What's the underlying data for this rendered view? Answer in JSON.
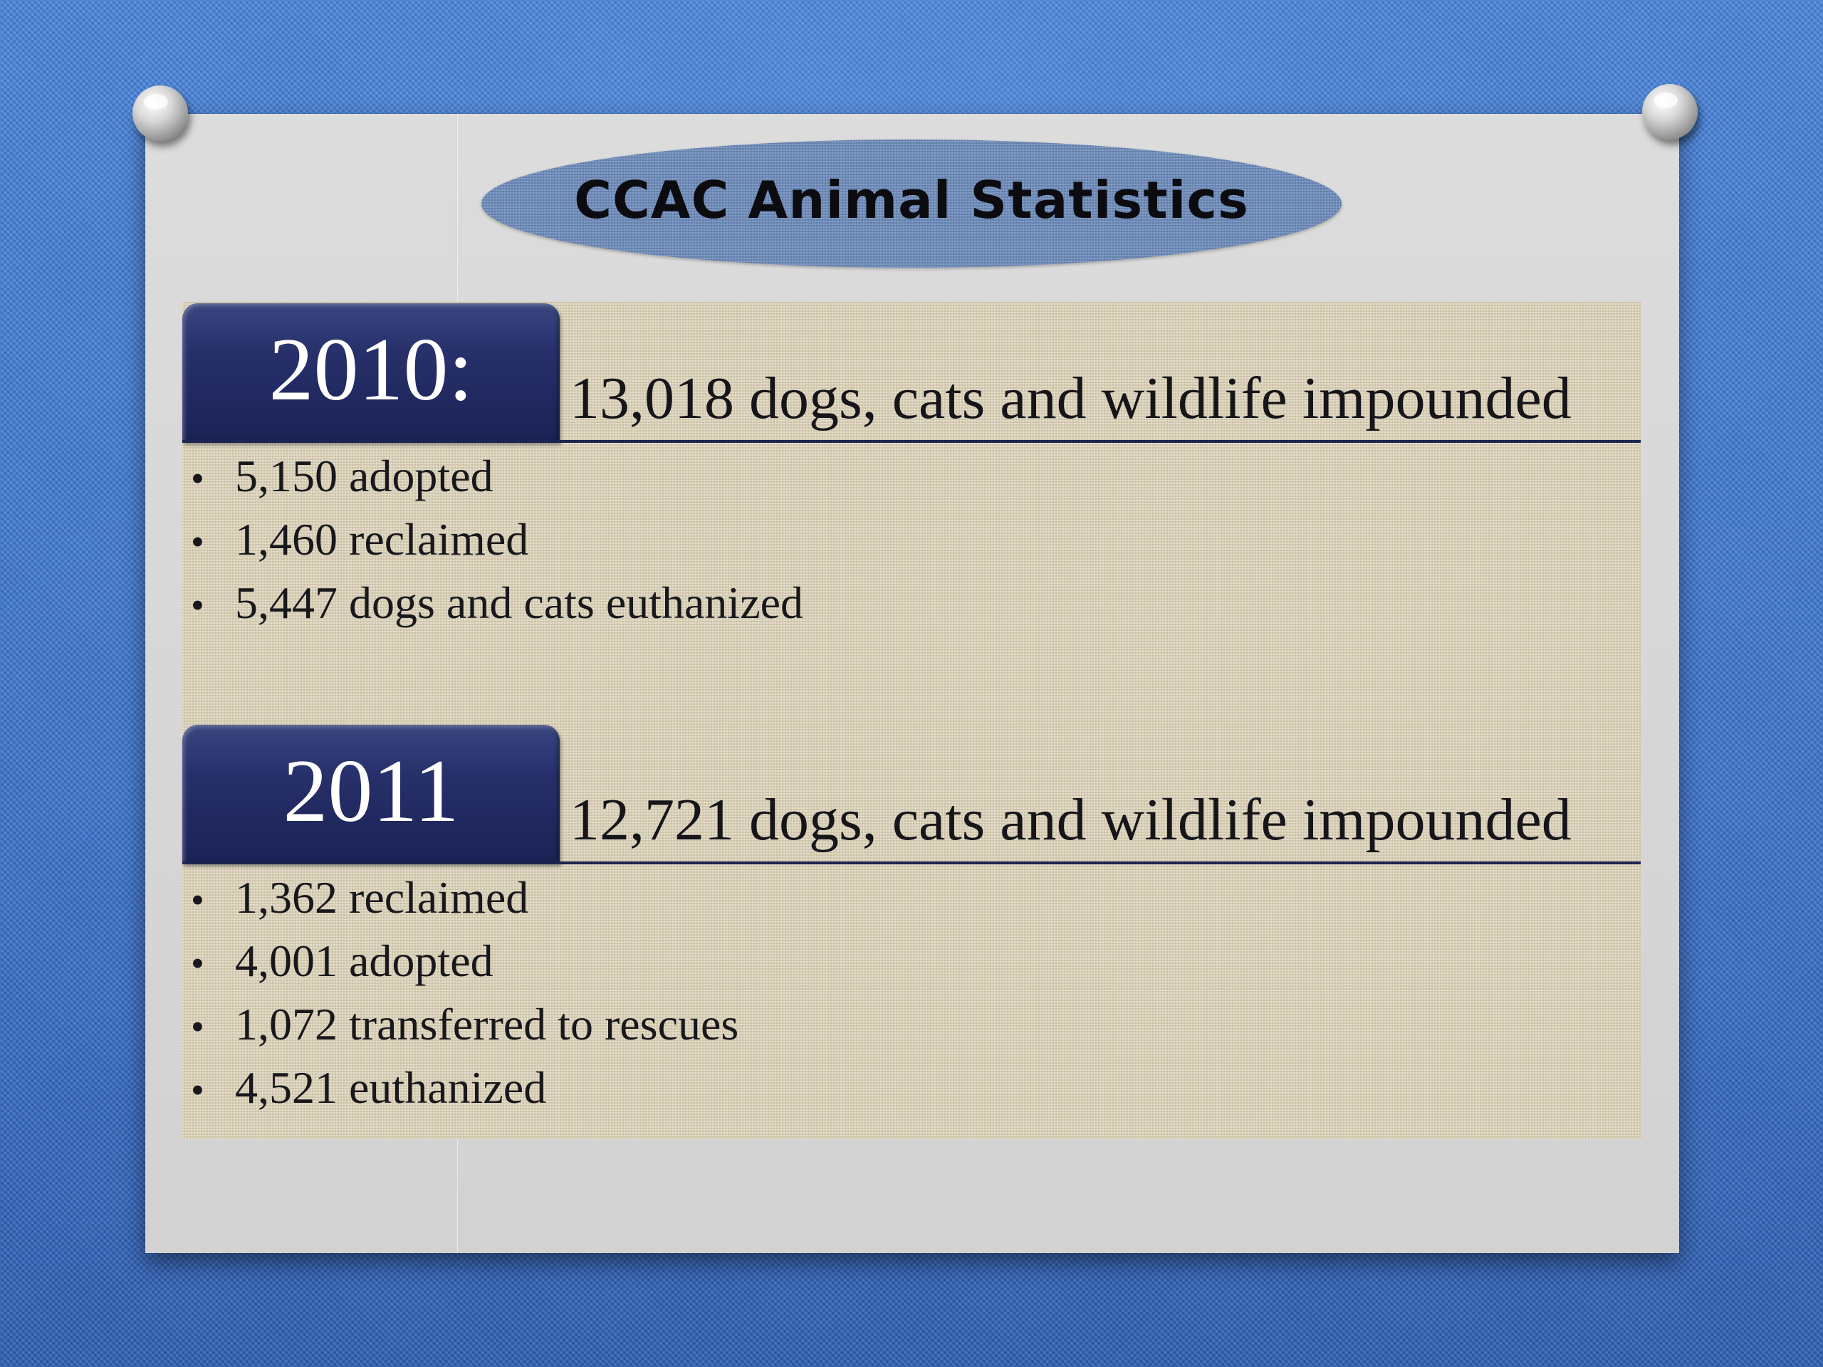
{
  "slide": {
    "title": "CCAC Animal Statistics"
  },
  "sections": [
    {
      "year": "2010:",
      "headline": "13,018 dogs, cats and wildlife impounded",
      "items": [
        "5,150 adopted",
        "1,460 reclaimed",
        "5,447 dogs and cats euthanized"
      ]
    },
    {
      "year": "2011",
      "headline": "12,721 dogs, cats and wildlife impounded",
      "items": [
        "1,362 reclaimed",
        "4,001 adopted",
        "1,072 transferred to rescues",
        "4,521 euthanized"
      ]
    }
  ],
  "bullet_glyph": "•",
  "colors": {
    "background": "#3f78d2",
    "board": "#d6d6d6",
    "canvas": "#ddd5bd",
    "tab": "#27306a",
    "oval": "#6e8fc0"
  }
}
